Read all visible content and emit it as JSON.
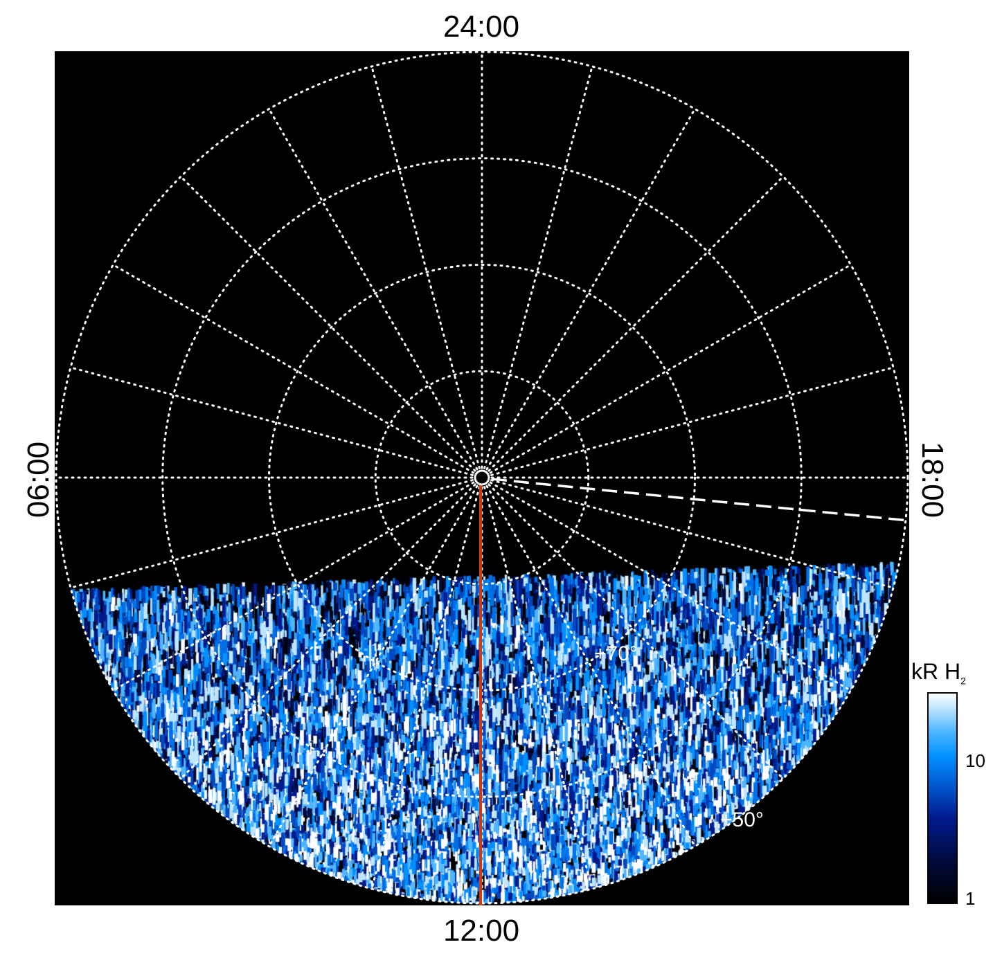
{
  "chart_data": {
    "type": "heatmap",
    "projection": "polar",
    "local_time_labels": {
      "top": "24:00",
      "bottom": "12:00",
      "left": "06:00",
      "right": "18:00"
    },
    "latitude_rings_deg": [
      80,
      70,
      60,
      50
    ],
    "latitude_labels": [
      "+70°",
      "+50°"
    ],
    "meridian_spacing_hours": 1,
    "grid": true,
    "colorbar": {
      "title": "kR H",
      "title_subscript": "2",
      "scale": "log",
      "range": [
        1,
        25
      ],
      "tick_labels": [
        "1",
        "10"
      ],
      "colormap": "black-blue-white"
    },
    "colors": {
      "background": "#000000",
      "grid": "#ffffff",
      "meridian_line": "#d03a10",
      "dashed_line": "#ffffff"
    }
  }
}
